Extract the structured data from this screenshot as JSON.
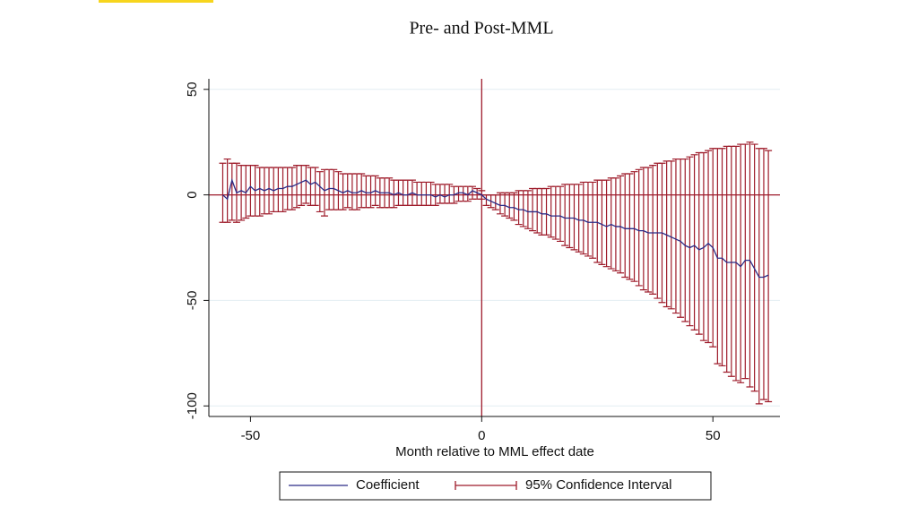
{
  "chart_data": {
    "type": "errorbar",
    "title": "Pre- and Post-MML",
    "x_label": "Month relative to MML effect date",
    "x": [
      -56,
      -55,
      -54,
      -53,
      -52,
      -51,
      -50,
      -49,
      -48,
      -47,
      -46,
      -45,
      -44,
      -43,
      -42,
      -41,
      -40,
      -39,
      -38,
      -37,
      -36,
      -35,
      -34,
      -33,
      -32,
      -31,
      -30,
      -29,
      -28,
      -27,
      -26,
      -25,
      -24,
      -23,
      -22,
      -21,
      -20,
      -19,
      -18,
      -17,
      -16,
      -15,
      -14,
      -13,
      -12,
      -11,
      -10,
      -9,
      -8,
      -7,
      -6,
      -5,
      -4,
      -3,
      -2,
      -1,
      0,
      1,
      2,
      3,
      4,
      5,
      6,
      7,
      8,
      9,
      10,
      11,
      12,
      13,
      14,
      15,
      16,
      17,
      18,
      19,
      20,
      21,
      22,
      23,
      24,
      25,
      26,
      27,
      28,
      29,
      30,
      31,
      32,
      33,
      34,
      35,
      36,
      37,
      38,
      39,
      40,
      41,
      42,
      43,
      44,
      45,
      46,
      47,
      48,
      49,
      50,
      51,
      52,
      53,
      54,
      55,
      56,
      57,
      58,
      59,
      60,
      61,
      62
    ],
    "series": [
      {
        "name": "Coefficient",
        "color": "#2b2b86",
        "values": [
          0,
          -2,
          7,
          1,
          2,
          1,
          4,
          2,
          3,
          2,
          3,
          2,
          3,
          3,
          4,
          4,
          5,
          6,
          7,
          5,
          6,
          4,
          2,
          3,
          3,
          2,
          1,
          2,
          1,
          1,
          2,
          1,
          1,
          2,
          1,
          1,
          1,
          0,
          1,
          0,
          0,
          1,
          0,
          0,
          0,
          0,
          -1,
          0,
          -1,
          0,
          0,
          1,
          1,
          0,
          2,
          1,
          0,
          -2,
          -3,
          -4,
          -5,
          -5,
          -6,
          -6,
          -7,
          -7,
          -8,
          -8,
          -8,
          -9,
          -9,
          -10,
          -10,
          -10,
          -11,
          -11,
          -11,
          -12,
          -12,
          -13,
          -13,
          -13,
          -14,
          -15,
          -14,
          -15,
          -15,
          -16,
          -16,
          -16,
          -17,
          -17,
          -18,
          -18,
          -18,
          -18,
          -19,
          -20,
          -21,
          -22,
          -24,
          -25,
          -24,
          -26,
          -25,
          -23,
          -25,
          -30,
          -30,
          -32,
          -32,
          -32,
          -34,
          -31,
          -31,
          -35,
          -39,
          -39,
          -38
        ]
      },
      {
        "name": "95% Confidence Interval",
        "color": "#9e1b2a",
        "lower": [
          -13,
          -13,
          -12,
          -13,
          -12,
          -11,
          -10,
          -10,
          -10,
          -9,
          -9,
          -8,
          -8,
          -8,
          -7,
          -7,
          -6,
          -5,
          -4,
          -5,
          -5,
          -8,
          -10,
          -7,
          -7,
          -7,
          -7,
          -6,
          -7,
          -7,
          -6,
          -6,
          -6,
          -5,
          -6,
          -6,
          -6,
          -6,
          -5,
          -5,
          -5,
          -5,
          -5,
          -5,
          -5,
          -5,
          -5,
          -4,
          -4,
          -4,
          -4,
          -3,
          -3,
          -3,
          -2,
          -2,
          -2,
          -5,
          -6,
          -7,
          -9,
          -10,
          -11,
          -12,
          -14,
          -15,
          -16,
          -17,
          -18,
          -19,
          -19,
          -20,
          -21,
          -22,
          -24,
          -25,
          -26,
          -27,
          -28,
          -29,
          -30,
          -32,
          -33,
          -34,
          -35,
          -36,
          -37,
          -39,
          -40,
          -41,
          -43,
          -45,
          -46,
          -47,
          -49,
          -51,
          -53,
          -54,
          -56,
          -58,
          -60,
          -62,
          -64,
          -66,
          -69,
          -70,
          -72,
          -80,
          -81,
          -84,
          -86,
          -88,
          -89,
          -87,
          -91,
          -93,
          -99,
          -97,
          -98
        ],
        "upper": [
          15,
          17,
          15,
          15,
          14,
          14,
          14,
          14,
          13,
          13,
          13,
          13,
          13,
          13,
          13,
          13,
          14,
          14,
          14,
          13,
          13,
          11,
          12,
          12,
          12,
          11,
          10,
          10,
          10,
          10,
          10,
          9,
          9,
          9,
          8,
          8,
          8,
          7,
          7,
          7,
          7,
          7,
          6,
          6,
          6,
          6,
          5,
          5,
          5,
          5,
          4,
          4,
          4,
          4,
          4,
          3,
          2,
          0,
          0,
          0,
          1,
          1,
          1,
          1,
          2,
          2,
          2,
          3,
          3,
          3,
          3,
          4,
          4,
          4,
          5,
          5,
          5,
          5,
          6,
          6,
          6,
          7,
          7,
          7,
          8,
          8,
          9,
          10,
          10,
          11,
          12,
          13,
          13,
          14,
          15,
          15,
          16,
          16,
          17,
          17,
          17,
          18,
          19,
          20,
          20,
          21,
          22,
          22,
          22,
          23,
          23,
          23,
          24,
          24,
          25,
          24,
          22,
          22,
          21
        ]
      }
    ],
    "reference_lines": {
      "x": 0,
      "y": 0
    },
    "xlim": [
      -59,
      64.5
    ],
    "ylim": [
      -105,
      55
    ],
    "xticks": [
      -50,
      0,
      50
    ],
    "yticks": [
      50,
      0,
      -50,
      -100
    ],
    "grid": true
  }
}
